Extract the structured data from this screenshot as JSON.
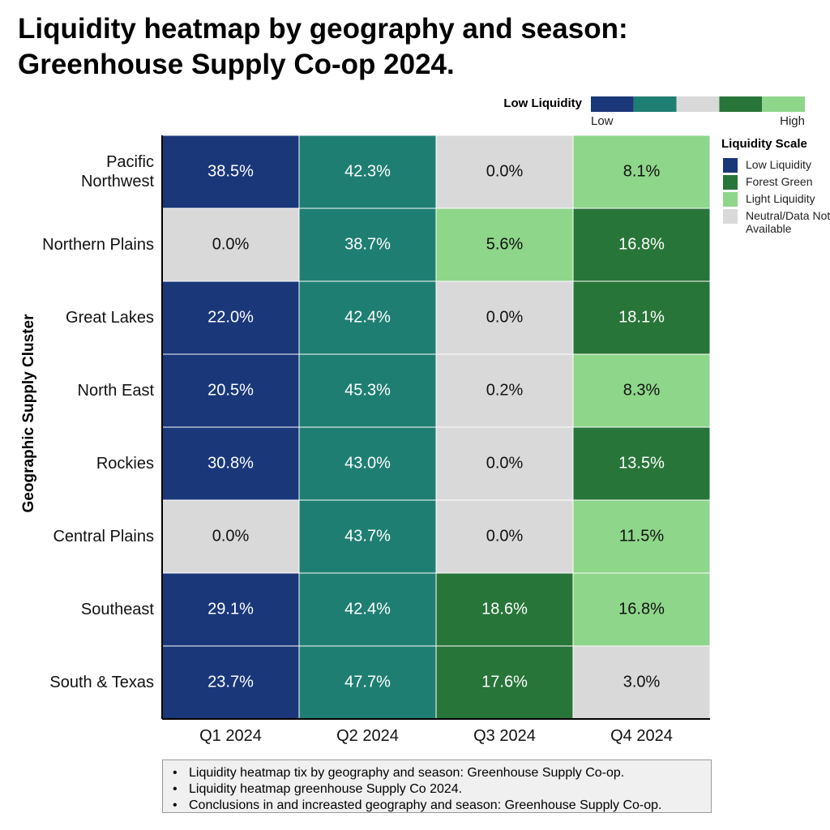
{
  "chart_data": {
    "type": "heatmap",
    "title": [
      "Liquidity heatmap by geography and season:",
      "Greenhouse Supply Co-op 2024."
    ],
    "y_label": "Geographic Supply Cluster",
    "x": [
      "Q1 2024",
      "Q2 2024",
      "Q3 2024",
      "Q4 2024"
    ],
    "y": [
      "Pacific Northwest",
      "Northern Plains",
      "Great Lakes",
      "North East",
      "Rockies",
      "Central Plains",
      "Southeast",
      "South & Texas"
    ],
    "values": [
      [
        38.5,
        42.3,
        0.0,
        8.1
      ],
      [
        0.0,
        38.7,
        5.6,
        16.8
      ],
      [
        22.0,
        42.4,
        0.0,
        18.1
      ],
      [
        20.5,
        45.3,
        0.2,
        8.3
      ],
      [
        30.8,
        43.0,
        0.0,
        13.5
      ],
      [
        0.0,
        43.7,
        0.0,
        11.5
      ],
      [
        29.1,
        42.4,
        18.6,
        16.8
      ],
      [
        23.7,
        47.7,
        17.6,
        3.0
      ]
    ],
    "value_labels": [
      [
        "38.5%",
        "42.3%",
        "0.0%",
        "8.1%"
      ],
      [
        "0.0%",
        "38.7%",
        "5.6%",
        "16.8%"
      ],
      [
        "22.0%",
        "42.4%",
        "0.0%",
        "18.1%"
      ],
      [
        "20.5%",
        "45.3%",
        "0.2%",
        "8.3%"
      ],
      [
        "30.8%",
        "43.0%",
        "0.0%",
        "13.5%"
      ],
      [
        "0.0%",
        "43.7%",
        "0.0%",
        "11.5%"
      ],
      [
        "29.1%",
        "42.4%",
        "18.6%",
        "16.8%"
      ],
      [
        "23.7%",
        "47.7%",
        "17.6%",
        "3.0%"
      ]
    ],
    "colors": [
      [
        "#1a377a",
        "#1f7e72",
        "#d9d9d9",
        "#8ed68a"
      ],
      [
        "#d9d9d9",
        "#1f7e72",
        "#8ed68a",
        "#287539"
      ],
      [
        "#1a377a",
        "#1f7e72",
        "#d9d9d9",
        "#287539"
      ],
      [
        "#1a377a",
        "#1f7e72",
        "#d9d9d9",
        "#8ed68a"
      ],
      [
        "#1a377a",
        "#1f7e72",
        "#d9d9d9",
        "#287539"
      ],
      [
        "#d9d9d9",
        "#1f7e72",
        "#d9d9d9",
        "#8ed68a"
      ],
      [
        "#1a377a",
        "#1f7e72",
        "#287539",
        "#8ed68a"
      ],
      [
        "#1a377a",
        "#1f7e72",
        "#287539",
        "#d9d9d9"
      ]
    ],
    "colorbar": {
      "title": "Low Liquidity",
      "low": "Low",
      "high": "High",
      "colors": [
        "#1a377a",
        "#1f7e72",
        "#d9d9d9",
        "#287539",
        "#8ed68a"
      ]
    },
    "legend": {
      "title": "Liquidity Scale",
      "items": [
        {
          "label": "Low Liquidity",
          "color": "#1a377a"
        },
        {
          "label": "Forest Green",
          "color": "#287539"
        },
        {
          "label": "Light Liquidity",
          "color": "#8ed68a"
        },
        {
          "label": "Neutral/Data Not Available",
          "color": "#d9d9d9"
        }
      ]
    },
    "notes": [
      "Liquidity heatmap tix by geography and season: Greenhouse Supply Co-op.",
      "Liquidity heatmap greenhouse Supply Co 2024.",
      "Conclusions in and increasted geography and season: Greenhouse Supply Co-op."
    ]
  }
}
